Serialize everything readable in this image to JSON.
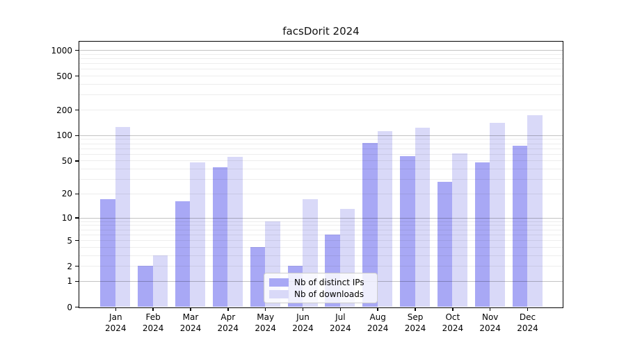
{
  "title": "facsDorit 2024",
  "legend": {
    "items": [
      {
        "label": "Nb of distinct IPs",
        "color": "#a8a8f5"
      },
      {
        "label": "Nb of downloads",
        "color": "#d9d9f8"
      }
    ],
    "position": "lower center"
  },
  "chart_data": {
    "type": "bar",
    "title": "facsDorit 2024",
    "categories": [
      "Jan",
      "Feb",
      "Mar",
      "Apr",
      "May",
      "Jun",
      "Jul",
      "Aug",
      "Sep",
      "Oct",
      "Nov",
      "Dec"
    ],
    "category_year": "2024",
    "series": [
      {
        "name": "Nb of distinct IPs",
        "color": "#a8a8f5",
        "values": [
          17,
          2,
          16,
          42,
          4,
          2,
          6,
          81,
          57,
          28,
          48,
          75
        ]
      },
      {
        "name": "Nb of downloads",
        "color": "#d9d9f8",
        "values": [
          124,
          3,
          48,
          56,
          9,
          17,
          13,
          112,
          123,
          61,
          139,
          173
        ]
      }
    ],
    "xlabel": "",
    "ylabel": "",
    "yscale": "log10(value+1)",
    "yticks": [
      0,
      1,
      2,
      5,
      10,
      20,
      50,
      100,
      200,
      500,
      1000
    ],
    "ytick_major": [
      1,
      10,
      100,
      1000
    ],
    "ytick_minor": [
      2,
      3,
      4,
      5,
      6,
      7,
      8,
      9,
      20,
      30,
      40,
      50,
      60,
      70,
      80,
      90,
      200,
      300,
      400,
      500,
      600,
      700,
      800,
      900
    ],
    "ylim": [
      0,
      1300
    ],
    "grid": "horizontal major+minor, drawn over bars",
    "legend_position": "lower center",
    "colors": {
      "grid_major": "rgba(0,0,0,0.24)",
      "grid_minor": "rgba(0,0,0,0.07)",
      "spine": "#000000"
    }
  }
}
